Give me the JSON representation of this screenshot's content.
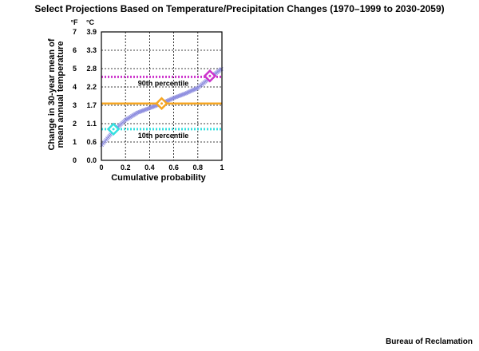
{
  "page": {
    "title": "Select Projections Based on Temperature/Precipitation Changes (1970–1999 to 2030-2059)",
    "credit": "Bureau of Reclamation"
  },
  "chart_data": {
    "type": "scatter",
    "xlabel": "Cumulative probability",
    "ylabel_lines": [
      "Change in 30-year mean of",
      "mean annual temperature"
    ],
    "unit_f": "°F",
    "unit_c": "°C",
    "xlim": [
      0,
      1
    ],
    "ylim": [
      0,
      7
    ],
    "x_ticks": [
      0,
      0.2,
      0.4,
      0.6,
      0.8,
      1
    ],
    "x_tick_labels": [
      "0",
      "0.2",
      "0.4",
      "0.6",
      "0.8",
      "1"
    ],
    "y_ticks": [
      0,
      1,
      2,
      3,
      4,
      5,
      6,
      7
    ],
    "y_tick_labels_f": [
      "0",
      "1",
      "2",
      "3",
      "4",
      "5",
      "6",
      "7"
    ],
    "y_tick_labels_c": [
      "0.0",
      "0.6",
      "1.1",
      "1.7",
      "2.2",
      "2.8",
      "3.3",
      "3.9"
    ],
    "grid": true,
    "scatter_color": "#9090e0",
    "cdf": {
      "n_points": 112,
      "curve": [
        [
          0,
          0.8
        ],
        [
          0.05,
          1.2
        ],
        [
          0.1,
          1.6
        ],
        [
          0.2,
          2.2
        ],
        [
          0.3,
          2.6
        ],
        [
          0.4,
          2.85
        ],
        [
          0.5,
          3.1
        ],
        [
          0.6,
          3.4
        ],
        [
          0.7,
          3.65
        ],
        [
          0.8,
          3.95
        ],
        [
          0.9,
          4.5
        ],
        [
          1,
          5.0
        ]
      ]
    },
    "reference_lines": [
      {
        "label": "90th percentile",
        "y": 4.55,
        "color": "#cc33cc",
        "style": "dotted"
      },
      {
        "label": "",
        "y": 3.1,
        "color": "#f5a623",
        "style": "solid"
      },
      {
        "label": "10th percentile",
        "y": 1.7,
        "color": "#33e0e0",
        "style": "dotted"
      }
    ],
    "markers": [
      {
        "x": 0.9,
        "y": 4.6,
        "color": "#cc33cc"
      },
      {
        "x": 0.5,
        "y": 3.1,
        "color": "#f5a623"
      },
      {
        "x": 0.1,
        "y": 1.7,
        "color": "#33e0e0"
      }
    ]
  }
}
